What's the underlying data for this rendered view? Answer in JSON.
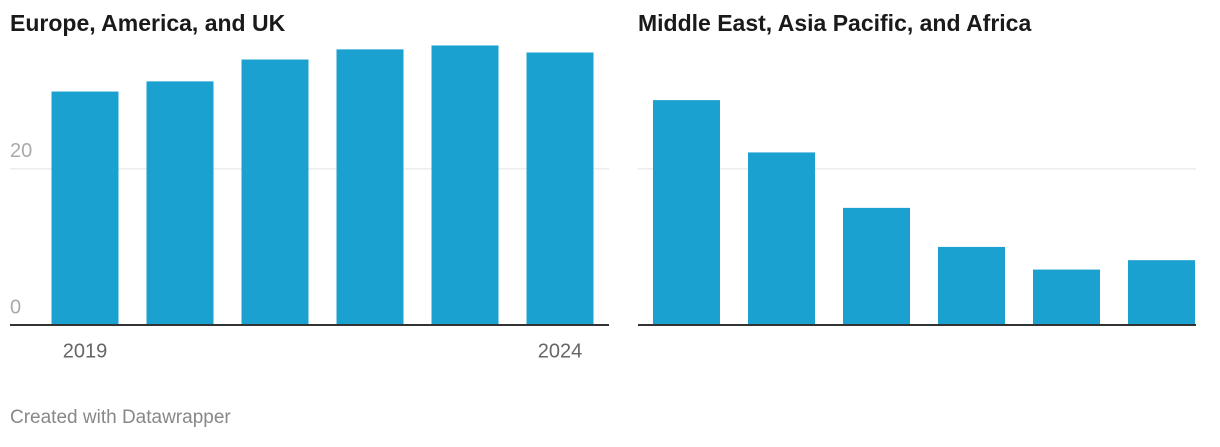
{
  "chart_data": [
    {
      "type": "bar",
      "title": "Europe, America, and UK",
      "categories": [
        "2019",
        null,
        null,
        null,
        null,
        "2024"
      ],
      "values": [
        29.9,
        31.2,
        34.0,
        35.3,
        35.8,
        34.9
      ],
      "color": "#1ba1d0",
      "ylim": [
        0,
        36.5
      ],
      "yticks": [
        0,
        20
      ],
      "tick_labels": true,
      "grid": true
    },
    {
      "type": "bar",
      "title": "Middle East, Asia Pacific, and Africa",
      "values": [
        28.8,
        22.1,
        15.0,
        10.0,
        7.1,
        8.3
      ],
      "color": "#1ba1d0",
      "ylim": [
        0,
        36.5
      ],
      "yticks": [
        0,
        20
      ],
      "tick_labels": false,
      "grid": true
    }
  ],
  "footer": "Created with Datawrapper"
}
